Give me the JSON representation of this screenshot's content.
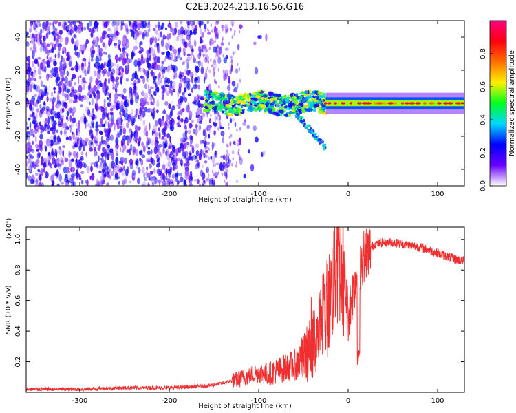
{
  "title": "C2E3.2024.213.16.56.G16",
  "chart_data": [
    {
      "type": "heatmap",
      "title": "C2E3.2024.213.16.56.G16",
      "xlabel": "Height of straight line (km)",
      "ylabel": "Frequency (Hz)",
      "xlim": [
        -360,
        130
      ],
      "ylim": [
        -50,
        50
      ],
      "xticks": [
        -300,
        -200,
        -100,
        0,
        100
      ],
      "yticks": [
        -40,
        -20,
        0,
        20,
        40
      ],
      "colorbar": {
        "label": "Normalized spectral amplitude",
        "range": [
          0.0,
          1.0
        ],
        "ticks": [
          0.0,
          0.2,
          0.4,
          0.6,
          0.8
        ],
        "tick_labels": [
          "0.0",
          "0.2",
          "0.4",
          "0.6",
          "0.8"
        ],
        "colormap": [
          "#ffffff",
          "#6a00ff",
          "#0000ff",
          "#00d8ff",
          "#00ff20",
          "#fff000",
          "#ff7000",
          "#ff0010",
          "#ff0080"
        ]
      },
      "features": [
        {
          "description": "broadband speckle noise",
          "x_range": [
            -360,
            -130
          ],
          "y_range": [
            -50,
            50
          ],
          "level": 0.15
        },
        {
          "description": "noisy carrier band",
          "x_range": [
            -160,
            -25
          ],
          "center_y": 0,
          "half_width": 6,
          "level": 0.45
        },
        {
          "description": "descending tail",
          "x_range": [
            -60,
            -25
          ],
          "y_range": [
            -27,
            -5
          ],
          "level": 0.3
        },
        {
          "description": "carrier line",
          "x_range": [
            -25,
            130
          ],
          "center_y": 0,
          "half_width": 2,
          "level": 0.85
        }
      ]
    },
    {
      "type": "line",
      "xlabel": "Height of straight line (km)",
      "ylabel": "SNR (10 * v/v)",
      "scale_label": "(x10⁴)",
      "xlim": [
        -360,
        130
      ],
      "ylim": [
        0,
        1.08
      ],
      "xticks": [
        -300,
        -200,
        -100,
        0,
        100
      ],
      "yticks": [
        0.2,
        0.4,
        0.6,
        0.8,
        1.0
      ],
      "line_color": "#f03030",
      "series": [
        {
          "x": [
            -360,
            -300,
            -250,
            -200,
            -160,
            -140,
            -120,
            -100,
            -90,
            -80,
            -70,
            -60,
            -50,
            -40,
            -30,
            -20,
            -15,
            -10,
            -5,
            0,
            10,
            20,
            30,
            40,
            50,
            60,
            70,
            80,
            90,
            100,
            110,
            120,
            130
          ],
          "values": [
            0.02,
            0.02,
            0.03,
            0.03,
            0.04,
            0.06,
            0.09,
            0.13,
            0.12,
            0.14,
            0.16,
            0.18,
            0.22,
            0.3,
            0.45,
            0.62,
            0.78,
            0.85,
            0.8,
            0.5,
            0.8,
            0.92,
            0.97,
            0.98,
            0.98,
            0.97,
            0.96,
            0.95,
            0.93,
            0.91,
            0.89,
            0.87,
            0.86
          ]
        }
      ]
    }
  ]
}
